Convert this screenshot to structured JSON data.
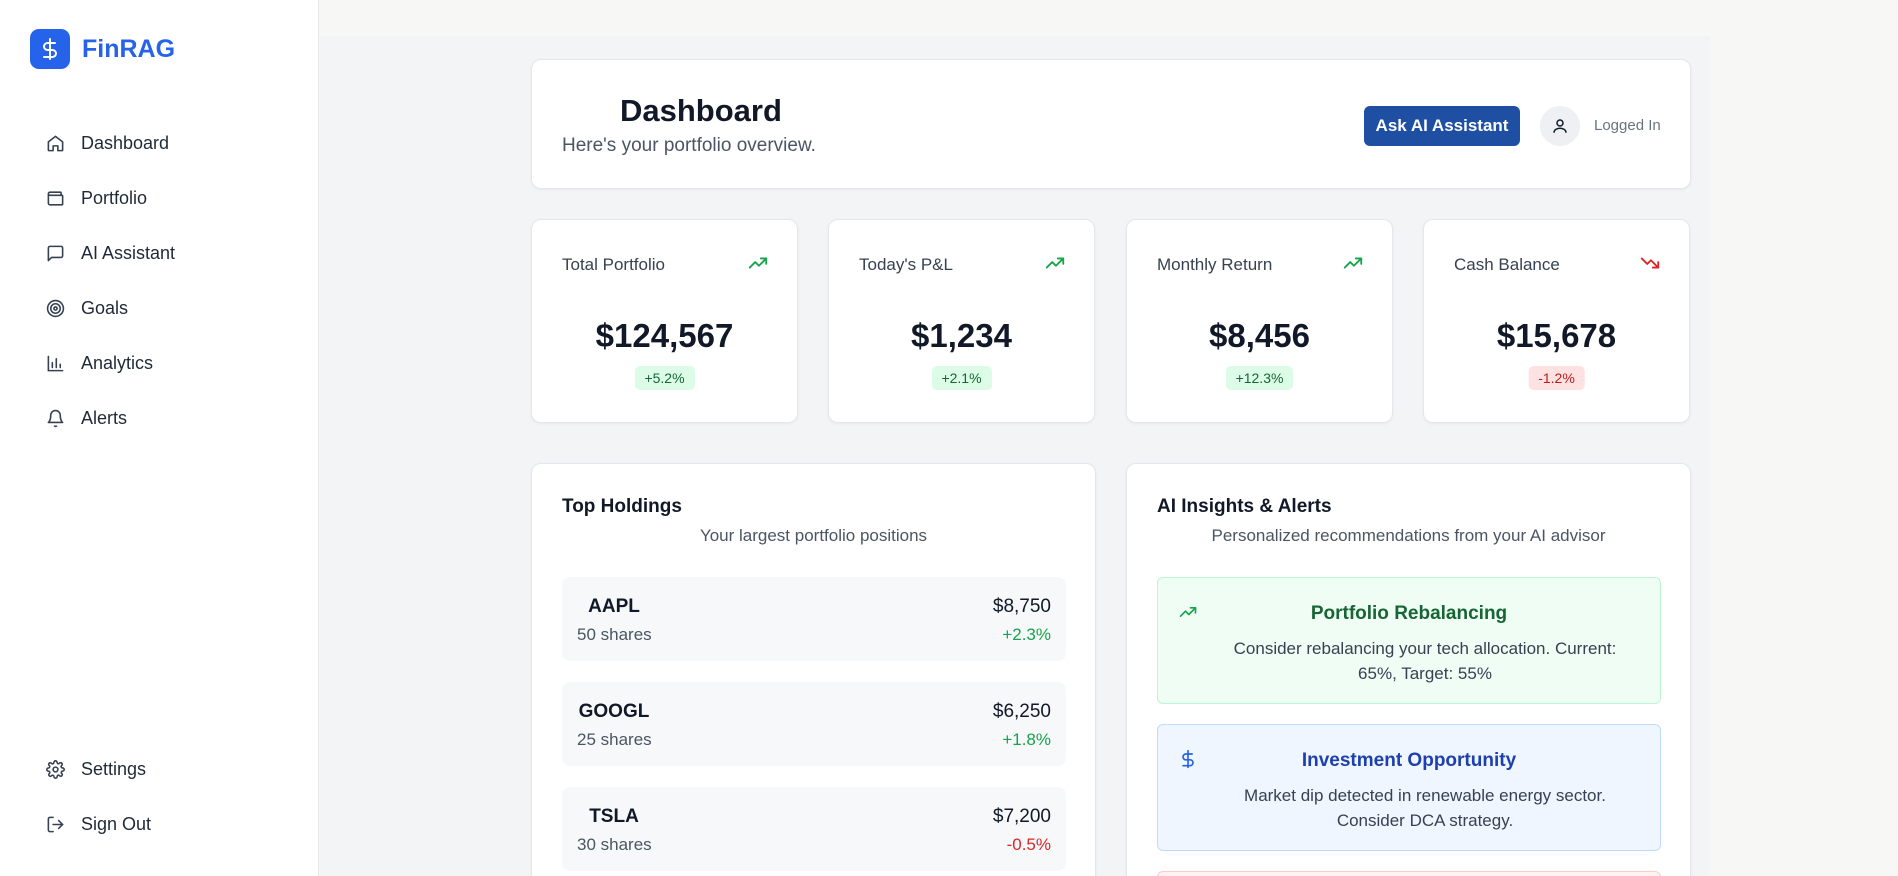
{
  "brand": {
    "name": "FinRAG",
    "logo_icon": "dollar-icon"
  },
  "sidebar": {
    "items": [
      {
        "label": "Dashboard",
        "icon": "home-icon"
      },
      {
        "label": "Portfolio",
        "icon": "wallet-icon"
      },
      {
        "label": "AI Assistant",
        "icon": "chat-icon"
      },
      {
        "label": "Goals",
        "icon": "target-icon"
      },
      {
        "label": "Analytics",
        "icon": "bar-chart-icon"
      },
      {
        "label": "Alerts",
        "icon": "bell-icon"
      }
    ],
    "bottom_items": [
      {
        "label": "Settings",
        "icon": "gear-icon"
      },
      {
        "label": "Sign Out",
        "icon": "sign-out-icon"
      }
    ]
  },
  "header": {
    "title": "Dashboard",
    "subtitle": "Here's your portfolio overview.",
    "ask_button": "Ask AI Assistant",
    "user_status": "Logged In"
  },
  "stats": [
    {
      "label": "Total Portfolio",
      "value": "$124,567",
      "change": "+5.2%",
      "trend": "up"
    },
    {
      "label": "Today's P&L",
      "value": "$1,234",
      "change": "+2.1%",
      "trend": "up"
    },
    {
      "label": "Monthly Return",
      "value": "$8,456",
      "change": "+12.3%",
      "trend": "up"
    },
    {
      "label": "Cash Balance",
      "value": "$15,678",
      "change": "-1.2%",
      "trend": "down"
    }
  ],
  "holdings": {
    "title": "Top Holdings",
    "subtitle": "Your largest portfolio positions",
    "items": [
      {
        "symbol": "AAPL",
        "shares": "50 shares",
        "value": "$8,750",
        "change": "+2.3%",
        "direction": "up"
      },
      {
        "symbol": "GOOGL",
        "shares": "25 shares",
        "value": "$6,250",
        "change": "+1.8%",
        "direction": "up"
      },
      {
        "symbol": "TSLA",
        "shares": "30 shares",
        "value": "$7,200",
        "change": "-0.5%",
        "direction": "down"
      }
    ]
  },
  "insights": {
    "title": "AI Insights & Alerts",
    "subtitle": "Personalized recommendations from your AI advisor",
    "items": [
      {
        "title": "Portfolio Rebalancing",
        "body": "Consider rebalancing your tech allocation. Current: 65%, Target: 55%",
        "icon": "trending-up-icon",
        "color": "#166534"
      },
      {
        "title": "Investment Opportunity",
        "body": "Market dip detected in renewable energy sector. Consider DCA strategy.",
        "icon": "dollar-icon",
        "color": "#1e40af"
      }
    ]
  },
  "colors": {
    "accent": "#2563eb",
    "button": "#1e4fa3",
    "positive": "#16a34a",
    "negative": "#dc2626"
  }
}
